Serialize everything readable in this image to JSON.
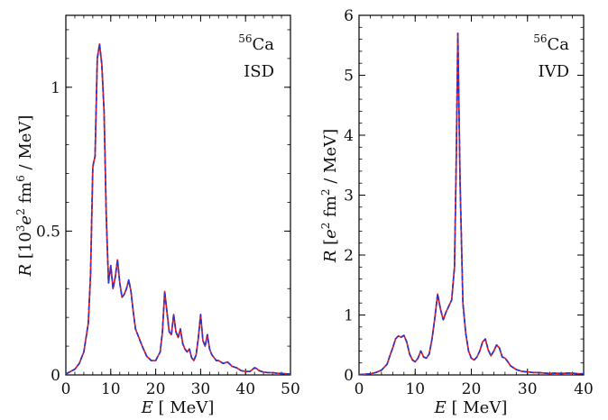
{
  "chart_data": [
    {
      "type": "line",
      "ylabel_parts": {
        "sym": "R",
        "pre": " [10",
        "sup1": "3",
        "e": "e",
        "sup2": "2",
        "fm": " fm",
        "sup3": "6",
        "post": " / MeV]"
      },
      "xlabel_parts": {
        "sym": "E",
        "post": " [ MeV]"
      },
      "xlim": [
        0,
        50
      ],
      "ylim": [
        0,
        1.25
      ],
      "xticks": [
        "0",
        "10",
        "20",
        "30",
        "40",
        "50"
      ],
      "yticks": [
        "0",
        "0.5",
        "1"
      ],
      "annotation": {
        "mass": "56",
        "element": "Ca",
        "mode": "ISD"
      },
      "series": [
        {
          "color": "#e8191e",
          "style": "solid",
          "x": [
            0,
            2,
            3,
            4,
            5,
            5.5,
            6,
            6.2,
            6.5,
            7,
            7.5,
            8,
            8.5,
            9,
            9.5,
            10,
            10.5,
            11,
            11.5,
            12,
            12.5,
            13,
            13.5,
            14,
            14.5,
            15,
            15.5,
            16,
            17,
            18,
            19,
            20,
            21,
            21.5,
            22,
            22.5,
            23,
            23.5,
            24,
            24.5,
            25,
            25.5,
            26,
            26.5,
            27,
            27.5,
            28,
            28.5,
            29,
            29.5,
            30,
            30.5,
            31,
            31.5,
            32,
            32.5,
            33,
            33.5,
            34,
            35,
            36,
            37,
            38,
            39,
            40,
            41,
            42,
            42.5,
            43,
            44,
            45,
            46,
            47,
            48,
            49,
            50
          ],
          "y": [
            0.003,
            0.02,
            0.04,
            0.08,
            0.18,
            0.35,
            0.72,
            0.74,
            0.76,
            1.1,
            1.15,
            1.08,
            0.92,
            0.55,
            0.32,
            0.38,
            0.3,
            0.34,
            0.4,
            0.32,
            0.27,
            0.28,
            0.3,
            0.33,
            0.29,
            0.22,
            0.16,
            0.14,
            0.1,
            0.065,
            0.05,
            0.05,
            0.08,
            0.15,
            0.29,
            0.22,
            0.15,
            0.14,
            0.21,
            0.15,
            0.13,
            0.16,
            0.11,
            0.09,
            0.08,
            0.09,
            0.06,
            0.05,
            0.07,
            0.13,
            0.21,
            0.12,
            0.1,
            0.14,
            0.09,
            0.07,
            0.06,
            0.05,
            0.05,
            0.04,
            0.045,
            0.03,
            0.025,
            0.015,
            0.012,
            0.012,
            0.025,
            0.022,
            0.015,
            0.01,
            0.008,
            0.008,
            0.006,
            0.005,
            0.004,
            0.003
          ]
        },
        {
          "color": "#2b36c8",
          "style": "dashed",
          "x": [
            0,
            2,
            3,
            4,
            5,
            5.5,
            6,
            6.2,
            6.5,
            7,
            7.5,
            8,
            8.5,
            9,
            9.5,
            10,
            10.5,
            11,
            11.5,
            12,
            12.5,
            13,
            13.5,
            14,
            14.5,
            15,
            15.5,
            16,
            17,
            18,
            19,
            20,
            21,
            21.5,
            22,
            22.5,
            23,
            23.5,
            24,
            24.5,
            25,
            25.5,
            26,
            26.5,
            27,
            27.5,
            28,
            28.5,
            29,
            29.5,
            30,
            30.5,
            31,
            31.5,
            32,
            32.5,
            33,
            33.5,
            34,
            35,
            36,
            37,
            38,
            39,
            40,
            41,
            42,
            42.5,
            43,
            44,
            45,
            46,
            47,
            48,
            49,
            50
          ],
          "y": [
            0.003,
            0.02,
            0.04,
            0.08,
            0.18,
            0.35,
            0.72,
            0.74,
            0.76,
            1.1,
            1.15,
            1.08,
            0.92,
            0.55,
            0.32,
            0.38,
            0.3,
            0.34,
            0.4,
            0.32,
            0.27,
            0.28,
            0.3,
            0.33,
            0.29,
            0.22,
            0.16,
            0.14,
            0.1,
            0.065,
            0.05,
            0.05,
            0.08,
            0.15,
            0.29,
            0.22,
            0.15,
            0.14,
            0.21,
            0.15,
            0.13,
            0.16,
            0.11,
            0.09,
            0.08,
            0.09,
            0.06,
            0.05,
            0.07,
            0.13,
            0.21,
            0.12,
            0.1,
            0.14,
            0.09,
            0.07,
            0.06,
            0.05,
            0.05,
            0.04,
            0.045,
            0.03,
            0.025,
            0.015,
            0.012,
            0.012,
            0.025,
            0.022,
            0.015,
            0.01,
            0.008,
            0.008,
            0.006,
            0.005,
            0.004,
            0.003
          ]
        }
      ]
    },
    {
      "type": "line",
      "ylabel_parts": {
        "sym": "R",
        "pre": " [",
        "e": "e",
        "sup2": "2",
        "fm": " fm",
        "sup3": "2",
        "post": " / MeV]"
      },
      "xlabel_parts": {
        "sym": "E",
        "post": " [ MeV]"
      },
      "xlim": [
        0,
        40
      ],
      "ylim": [
        0,
        6
      ],
      "xticks": [
        "0",
        "10",
        "20",
        "30",
        "40"
      ],
      "yticks": [
        "0",
        "1",
        "2",
        "3",
        "4",
        "5",
        "6"
      ],
      "annotation": {
        "mass": "56",
        "element": "Ca",
        "mode": "IVD"
      },
      "series": [
        {
          "color": "#e8191e",
          "style": "solid",
          "x": [
            0,
            2,
            3,
            4,
            5,
            5.5,
            6,
            6.5,
            7,
            7.5,
            8,
            8.5,
            9,
            9.5,
            10,
            10.5,
            11,
            11.5,
            12,
            12.5,
            13,
            13.5,
            14,
            14.5,
            15,
            15.5,
            16,
            16.5,
            17,
            17.3,
            17.6,
            18,
            18.5,
            19,
            19.5,
            20,
            20.5,
            21,
            21.5,
            22,
            22.5,
            23,
            23.5,
            24,
            24.5,
            25,
            25.5,
            26,
            26.5,
            27,
            28,
            29,
            30,
            31,
            32,
            33,
            34,
            35,
            36,
            37,
            38,
            39,
            40
          ],
          "y": [
            0.005,
            0.02,
            0.04,
            0.08,
            0.18,
            0.32,
            0.45,
            0.6,
            0.65,
            0.63,
            0.66,
            0.55,
            0.35,
            0.25,
            0.22,
            0.28,
            0.4,
            0.3,
            0.28,
            0.35,
            0.6,
            0.95,
            1.35,
            1.1,
            0.92,
            1.05,
            1.15,
            1.25,
            1.8,
            3.5,
            5.7,
            3.2,
            1.2,
            0.7,
            0.4,
            0.28,
            0.25,
            0.3,
            0.4,
            0.55,
            0.6,
            0.42,
            0.32,
            0.4,
            0.5,
            0.45,
            0.3,
            0.28,
            0.22,
            0.15,
            0.09,
            0.06,
            0.05,
            0.04,
            0.04,
            0.03,
            0.025,
            0.03,
            0.025,
            0.03,
            0.03,
            0.02,
            0.02
          ]
        },
        {
          "color": "#2b36c8",
          "style": "dashed",
          "x": [
            0,
            2,
            3,
            4,
            5,
            5.5,
            6,
            6.5,
            7,
            7.5,
            8,
            8.5,
            9,
            9.5,
            10,
            10.5,
            11,
            11.5,
            12,
            12.5,
            13,
            13.5,
            14,
            14.5,
            15,
            15.5,
            16,
            16.5,
            17,
            17.3,
            17.6,
            18,
            18.5,
            19,
            19.5,
            20,
            20.5,
            21,
            21.5,
            22,
            22.5,
            23,
            23.5,
            24,
            24.5,
            25,
            25.5,
            26,
            26.5,
            27,
            28,
            29,
            30,
            31,
            32,
            33,
            34,
            35,
            36,
            37,
            38,
            39,
            40
          ],
          "y": [
            0.005,
            0.02,
            0.04,
            0.08,
            0.18,
            0.32,
            0.45,
            0.6,
            0.65,
            0.63,
            0.66,
            0.55,
            0.35,
            0.25,
            0.22,
            0.28,
            0.4,
            0.3,
            0.28,
            0.35,
            0.6,
            0.95,
            1.35,
            1.1,
            0.92,
            1.05,
            1.15,
            1.25,
            1.8,
            3.5,
            5.7,
            3.2,
            1.2,
            0.7,
            0.4,
            0.28,
            0.25,
            0.3,
            0.4,
            0.55,
            0.6,
            0.42,
            0.32,
            0.4,
            0.5,
            0.45,
            0.3,
            0.28,
            0.22,
            0.15,
            0.09,
            0.06,
            0.05,
            0.04,
            0.04,
            0.03,
            0.025,
            0.03,
            0.025,
            0.03,
            0.03,
            0.02,
            0.02
          ]
        }
      ]
    }
  ]
}
